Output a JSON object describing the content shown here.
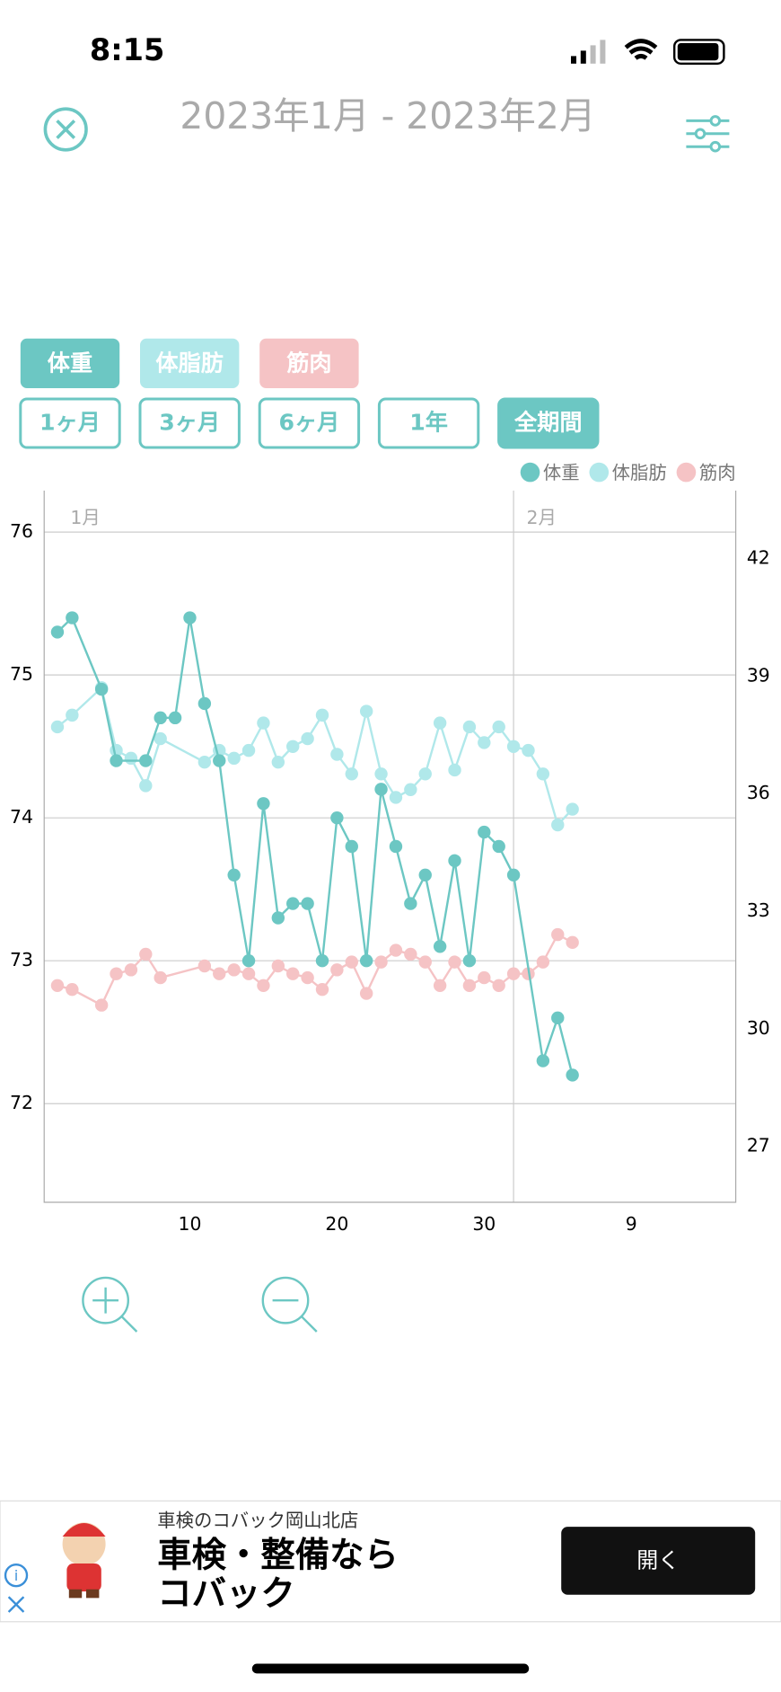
{
  "status_bar": {
    "time": "8:15"
  },
  "header": {
    "title": "2023年1月 - 2023年2月"
  },
  "periods": [
    "1ヶ月",
    "3ヶ月",
    "6ヶ月",
    "1年",
    "全期間"
  ],
  "chart_data": {
    "type": "line",
    "month_labels": [
      {
        "value": 1,
        "label": "1月"
      },
      {
        "value": 32,
        "label": "2月"
      }
    ],
    "xlim": [
      0.1,
      47.1
    ],
    "xticks": [
      10,
      20,
      30,
      {
        "value": 40,
        "label": "9"
      }
    ],
    "ylim": [
      71.31,
      76.29
    ],
    "yticks": [
      72,
      73,
      74,
      75,
      76
    ],
    "y2lim": [
      25.57,
      43.73
    ],
    "y2ticks": [
      27,
      30,
      33,
      36,
      39,
      42
    ],
    "grid": true,
    "legend": "top-right",
    "series": [
      {
        "name": "体重",
        "color": "#6cc7c3",
        "x": [
          1,
          2,
          4,
          5,
          7,
          8,
          9,
          10,
          11,
          12,
          13,
          14,
          15,
          16,
          17,
          18,
          19,
          20,
          21,
          22,
          23,
          24,
          25,
          26,
          27,
          28,
          29,
          30,
          31,
          32,
          34,
          35,
          36
        ],
        "values": [
          75.3,
          75.4,
          74.9,
          74.4,
          74.4,
          74.7,
          74.7,
          75.4,
          74.8,
          74.4,
          73.6,
          73.0,
          74.1,
          73.3,
          73.4,
          73.4,
          73.0,
          74.0,
          73.8,
          73.0,
          74.2,
          73.8,
          73.4,
          73.6,
          73.1,
          73.7,
          73.0,
          73.9,
          73.8,
          73.6,
          72.3,
          72.6,
          72.2
        ]
      },
      {
        "name": "体脂肪",
        "color": "#b0e8ea",
        "axis": "y2",
        "x": [
          1,
          2,
          4,
          5,
          6,
          7,
          8,
          11,
          12,
          13,
          14,
          15,
          16,
          17,
          18,
          19,
          20,
          21,
          22,
          23,
          24,
          25,
          26,
          27,
          28,
          29,
          30,
          31,
          32,
          33,
          34,
          35,
          36
        ],
        "values": [
          37.7,
          38.0,
          38.7,
          37.1,
          36.9,
          36.2,
          37.4,
          36.8,
          37.1,
          36.9,
          37.1,
          37.8,
          36.8,
          37.2,
          37.4,
          38.0,
          37.0,
          36.5,
          38.1,
          36.5,
          35.9,
          36.1,
          36.5,
          37.8,
          36.6,
          37.7,
          37.3,
          37.7,
          37.2,
          37.1,
          36.5,
          35.2,
          35.6
        ]
      },
      {
        "name": "筋肉",
        "color": "#f5c3c5",
        "axis": "y2",
        "x": [
          1,
          2,
          4,
          5,
          6,
          7,
          8,
          11,
          12,
          13,
          14,
          15,
          16,
          17,
          18,
          19,
          20,
          21,
          22,
          23,
          24,
          25,
          26,
          27,
          28,
          29,
          30,
          31,
          32,
          33,
          34,
          35,
          36
        ],
        "values": [
          31.1,
          31.0,
          30.6,
          31.4,
          31.5,
          31.9,
          31.3,
          31.6,
          31.4,
          31.5,
          31.4,
          31.1,
          31.6,
          31.4,
          31.3,
          31.0,
          31.5,
          31.7,
          30.9,
          31.7,
          32.0,
          31.9,
          31.7,
          31.1,
          31.7,
          31.1,
          31.3,
          31.1,
          31.4,
          31.4,
          31.7,
          32.4,
          32.2
        ]
      }
    ]
  },
  "ad": {
    "store": "車検のコバック岡山北店",
    "headline_1": "車検・整備なら",
    "headline_2": "コバック",
    "button": "開く"
  }
}
